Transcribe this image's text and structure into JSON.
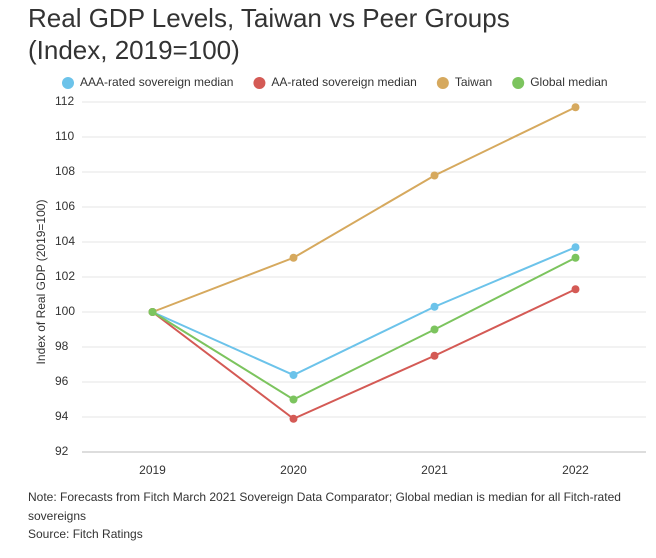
{
  "chart_data": {
    "type": "line",
    "title": "Real GDP Levels, Taiwan vs Peer Groups",
    "subtitle": "(Index, 2019=100)",
    "y_label": "Index of Real GDP (2019=100)",
    "categories": [
      "2019",
      "2020",
      "2021",
      "2022"
    ],
    "series": [
      {
        "name": "AAA-rated sovereign median",
        "color": "#6cc3ea",
        "values": [
          100,
          96.4,
          100.3,
          103.7
        ]
      },
      {
        "name": "AA-rated sovereign median",
        "color": "#d45a55",
        "values": [
          100,
          93.9,
          97.5,
          101.3
        ]
      },
      {
        "name": "Taiwan",
        "color": "#d6a95e",
        "values": [
          100,
          103.1,
          107.8,
          111.7
        ]
      },
      {
        "name": "Global median",
        "color": "#7cc45e",
        "values": [
          100,
          95,
          99,
          103.1
        ]
      }
    ],
    "ylim": [
      92,
      112
    ],
    "yticks": [
      92,
      94,
      96,
      98,
      100,
      102,
      104,
      106,
      108,
      110,
      112
    ],
    "grid": true,
    "legend": "top",
    "note": "Note: Forecasts from Fitch March 2021 Sovereign Data Comparator; Global median is median for all Fitch-rated",
    "note_line2": "sovereigns",
    "source": "Source: Fitch Ratings"
  }
}
